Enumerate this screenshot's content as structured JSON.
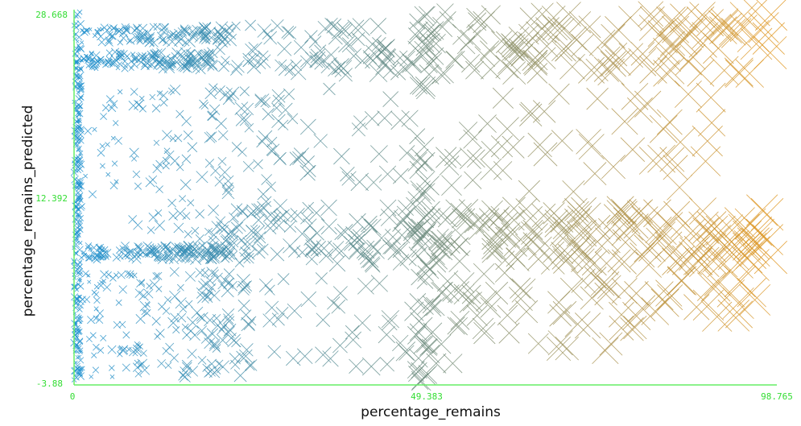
{
  "chart_data": {
    "type": "scatter",
    "marker": "x",
    "xlabel": "percentage_remains",
    "ylabel": "percentage_remains_predicted",
    "xlim": [
      0,
      98.765
    ],
    "ylim": [
      -3.88,
      28.668
    ],
    "x_ticks": [
      "0",
      "49.383",
      "98.765"
    ],
    "y_ticks": [
      "-3.88",
      "12.392",
      "28.668"
    ],
    "grid": false,
    "colors": {
      "low": "#1f90d0",
      "mid": "#6e8c7e",
      "high": "#e2961e",
      "axis": "#66ee66",
      "tick_text": "#33dd33"
    },
    "note_size_encoding": "marker size and color grow with x value",
    "clusters": [
      {
        "x": [
          0,
          1
        ],
        "y": [
          -3.5,
          28.6
        ],
        "n": 260
      },
      {
        "x": [
          1,
          20
        ],
        "y": [
          23.5,
          25.0
        ],
        "n": 140
      },
      {
        "x": [
          1,
          22
        ],
        "y": [
          25.8,
          27.2
        ],
        "n": 110
      },
      {
        "x": [
          1,
          22
        ],
        "y": [
          7.0,
          8.2
        ],
        "n": 150
      },
      {
        "x": [
          1,
          25
        ],
        "y": [
          -3.2,
          6.0
        ],
        "n": 180
      },
      {
        "x": [
          1,
          30
        ],
        "y": [
          8.5,
          22.0
        ],
        "n": 140
      },
      {
        "x": [
          20,
          50
        ],
        "y": [
          23.0,
          27.5
        ],
        "n": 90
      },
      {
        "x": [
          20,
          50
        ],
        "y": [
          6.5,
          11.5
        ],
        "n": 110
      },
      {
        "x": [
          20,
          55
        ],
        "y": [
          -2.5,
          5.5
        ],
        "n": 50
      },
      {
        "x": [
          20,
          55
        ],
        "y": [
          12.0,
          22.5
        ],
        "n": 45
      },
      {
        "x": [
          48,
          50
        ],
        "y": [
          -3.8,
          28.5
        ],
        "n": 50
      },
      {
        "x": [
          50,
          98
        ],
        "y": [
          23.0,
          28.6
        ],
        "n": 130
      },
      {
        "x": [
          50,
          98
        ],
        "y": [
          6.5,
          11.5
        ],
        "n": 170
      },
      {
        "x": [
          50,
          98
        ],
        "y": [
          2.0,
          6.0
        ],
        "n": 55
      },
      {
        "x": [
          55,
          90
        ],
        "y": [
          12.5,
          22.0
        ],
        "n": 45
      },
      {
        "x": [
          50,
          80
        ],
        "y": [
          -1.0,
          2.5
        ],
        "n": 18
      }
    ]
  }
}
